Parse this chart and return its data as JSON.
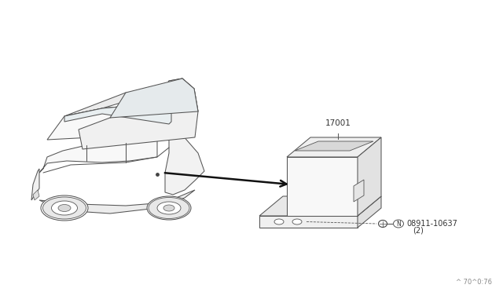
{
  "bg_color": "#ffffff",
  "line_color": "#1a1a1a",
  "part_label_17001": "17001",
  "part_label_bolt": "08911-10637",
  "part_label_bolt_qty": "(2)",
  "part_label_N": "N",
  "watermark": "^ 70^0:76",
  "fig_width": 6.4,
  "fig_height": 3.72,
  "dpi": 100,
  "car_color": "#ffffff",
  "car_edge": "#333333",
  "box_face": "#f8f8f8",
  "box_top": "#eeeeee",
  "box_side": "#e0e0e0",
  "bracket_face": "#f2f2f2",
  "bracket_side": "#e5e5e5"
}
